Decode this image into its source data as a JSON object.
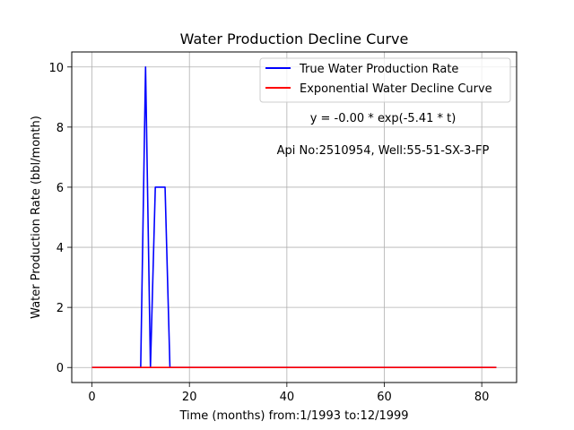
{
  "chart_data": {
    "type": "line",
    "title": "Water Production Decline Curve",
    "xlabel": "Time (months) from:1/1993 to:12/1999",
    "ylabel": "Water Production Rate (bbl/month)",
    "xlim": [
      -4.15,
      87.15
    ],
    "ylim": [
      -0.5,
      10.5
    ],
    "xticks": [
      0,
      20,
      40,
      60,
      80
    ],
    "yticks": [
      0,
      2,
      4,
      6,
      8,
      10
    ],
    "grid": true,
    "legend_position": "top-right",
    "series": [
      {
        "name": "True Water Production Rate",
        "color": "#0000ff",
        "x": [
          0,
          10,
          11,
          12,
          13,
          14,
          15,
          16,
          83
        ],
        "y": [
          0,
          0,
          10,
          0,
          6,
          6,
          6,
          0,
          0
        ]
      },
      {
        "name": "Exponential Water Decline Curve",
        "color": "#ff0000",
        "x": [
          0,
          83
        ],
        "y": [
          0,
          0
        ]
      }
    ],
    "annotations": [
      "y = -0.00 * exp(-5.41 * t)",
      "Api No:2510954, Well:55-51-SX-3-FP"
    ]
  }
}
